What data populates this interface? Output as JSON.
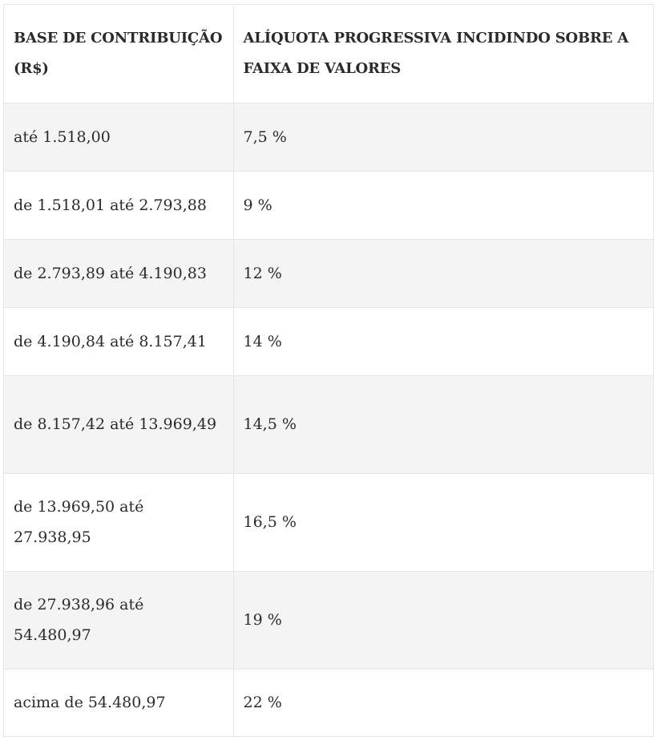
{
  "table": {
    "headers": [
      "BASE DE CONTRIBUIÇÃO (R$)",
      "ALÍQUOTA PROGRESSIVA INCIDINDO SOBRE A FAIXA DE VALORES"
    ],
    "rows": [
      {
        "base": "até 1.518,00",
        "aliquota": "7,5 %"
      },
      {
        "base": "de 1.518,01 até 2.793,88",
        "aliquota": "9 %"
      },
      {
        "base": "de 2.793,89 até 4.190,83",
        "aliquota": "12 %"
      },
      {
        "base": "de 4.190,84 até 8.157,41",
        "aliquota": "14 %"
      },
      {
        "base": "de 8.157,42 até 13.969,49",
        "aliquota": "14,5 %"
      },
      {
        "base": "de 13.969,50 até 27.938,95",
        "aliquota": "16,5 %"
      },
      {
        "base": "de 27.938,96 até 54.480,97",
        "aliquota": "19 %"
      },
      {
        "base": "acima de 54.480,97",
        "aliquota": "22 %"
      }
    ]
  }
}
